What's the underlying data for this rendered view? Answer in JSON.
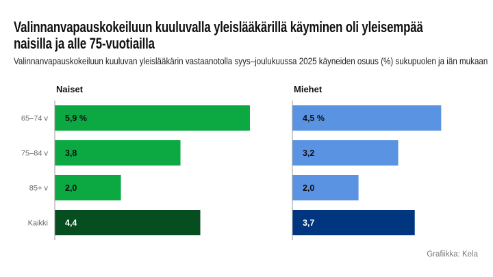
{
  "title": "Valinnanvapauskokeiluun kuuluvalla yleislääkärillä käyminen oli yleisempää naisilla ja alle 75-vuotiailla",
  "subtitle": "Valinnanvapauskokeiluun kuuluvan yleislääkärin vastaanotolla syys–joulukuussa 2025 käyneiden osuus (%) sukupuolen ja iän mukaan",
  "credit": "Grafiikka: Kela",
  "chart_data": [
    {
      "type": "bar",
      "orientation": "horizontal",
      "title": "Naiset",
      "categories": [
        "65–74 v",
        "75–84 v",
        "85+ v",
        "Kaikki"
      ],
      "values": [
        5.9,
        3.8,
        2.0,
        4.4
      ],
      "labels": [
        "5,9 %",
        "3,8",
        "2,0",
        "4,4"
      ],
      "colors": [
        "#0ca842",
        "#0ca842",
        "#0ca842",
        "#064d1f"
      ],
      "label_colors": [
        "#111111",
        "#111111",
        "#111111",
        "#ffffff"
      ],
      "xlim": [
        0,
        6
      ]
    },
    {
      "type": "bar",
      "orientation": "horizontal",
      "title": "Miehet",
      "categories": [
        "65–74 v",
        "75–84 v",
        "85+ v",
        "Kaikki"
      ],
      "values": [
        4.5,
        3.2,
        2.0,
        3.7
      ],
      "labels": [
        "4,5 %",
        "3,2",
        "2,0",
        "3,7"
      ],
      "colors": [
        "#5b93e3",
        "#5b93e3",
        "#5b93e3",
        "#003580"
      ],
      "label_colors": [
        "#111111",
        "#111111",
        "#111111",
        "#ffffff"
      ],
      "xlim": [
        0,
        6
      ]
    }
  ]
}
